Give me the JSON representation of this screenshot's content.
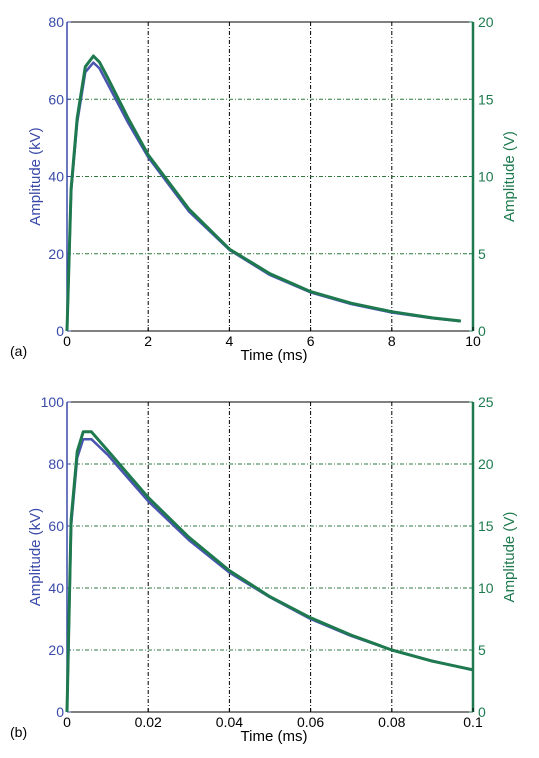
{
  "chart_data": [
    {
      "type": "line",
      "panel_label": "(a)",
      "xlabel": "Time (ms)",
      "ylabel_left": "Amplitude (kV)",
      "ylabel_right": "Amplitude (V)",
      "xlim": [
        0,
        10
      ],
      "ylim_left": [
        0,
        80
      ],
      "ylim_right": [
        0,
        20
      ],
      "xticks": [
        "0",
        "2",
        "4",
        "6",
        "8",
        "10"
      ],
      "yticks_left": [
        "0",
        "20",
        "40",
        "60",
        "80"
      ],
      "yticks_right": [
        "0",
        "5",
        "10",
        "15",
        "20"
      ],
      "grid": true,
      "series": [
        {
          "axis": "left",
          "color": "#4a55b0",
          "x": [
            0,
            0.1,
            0.25,
            0.45,
            0.65,
            0.8,
            1.0,
            1.5,
            2.0,
            3.0,
            4.0,
            5.0,
            6.0,
            7.0,
            8.0,
            9.0,
            9.7
          ],
          "y": [
            0,
            36,
            54,
            67,
            69.5,
            68,
            64,
            54,
            45,
            31,
            21,
            14.5,
            10,
            7,
            4.8,
            3.3,
            2.5
          ]
        },
        {
          "axis": "right",
          "color": "#1e7a4e",
          "x": [
            0,
            0.1,
            0.25,
            0.45,
            0.65,
            0.8,
            1.0,
            1.5,
            2.0,
            3.0,
            4.0,
            5.0,
            6.0,
            7.0,
            8.0,
            9.0,
            9.7
          ],
          "y": [
            0,
            9.2,
            13.8,
            17.1,
            17.8,
            17.4,
            16.4,
            13.8,
            11.4,
            7.9,
            5.3,
            3.7,
            2.55,
            1.8,
            1.25,
            0.85,
            0.65
          ]
        }
      ]
    },
    {
      "type": "line",
      "panel_label": "(b)",
      "xlabel": "Time (ms)",
      "ylabel_left": "Amplitude (kV)",
      "ylabel_right": "Amplitude (V)",
      "xlim": [
        0,
        0.1
      ],
      "ylim_left": [
        0,
        100
      ],
      "ylim_right": [
        0,
        25
      ],
      "xticks": [
        "0",
        "0.02",
        "0.04",
        "0.06",
        "0.08",
        "0.1"
      ],
      "yticks_left": [
        "0",
        "20",
        "40",
        "60",
        "80",
        "100"
      ],
      "yticks_right": [
        "0",
        "5",
        "10",
        "15",
        "20",
        "25"
      ],
      "grid": true,
      "series": [
        {
          "axis": "left",
          "color": "#4a55b0",
          "x": [
            0,
            0.001,
            0.0025,
            0.004,
            0.006,
            0.01,
            0.02,
            0.03,
            0.04,
            0.05,
            0.06,
            0.07,
            0.08,
            0.09,
            0.1
          ],
          "y": [
            0,
            60,
            82,
            88,
            88,
            83,
            68,
            55.5,
            45,
            37,
            30,
            24.5,
            20,
            16.5,
            13.5
          ]
        },
        {
          "axis": "right",
          "color": "#1e7a4e",
          "x": [
            0,
            0.001,
            0.0025,
            0.004,
            0.006,
            0.01,
            0.02,
            0.03,
            0.04,
            0.05,
            0.06,
            0.07,
            0.08,
            0.09,
            0.1
          ],
          "y": [
            0,
            15.5,
            21,
            22.6,
            22.6,
            21.1,
            17.3,
            14.1,
            11.4,
            9.3,
            7.6,
            6.2,
            5.0,
            4.1,
            3.4
          ]
        }
      ]
    }
  ]
}
